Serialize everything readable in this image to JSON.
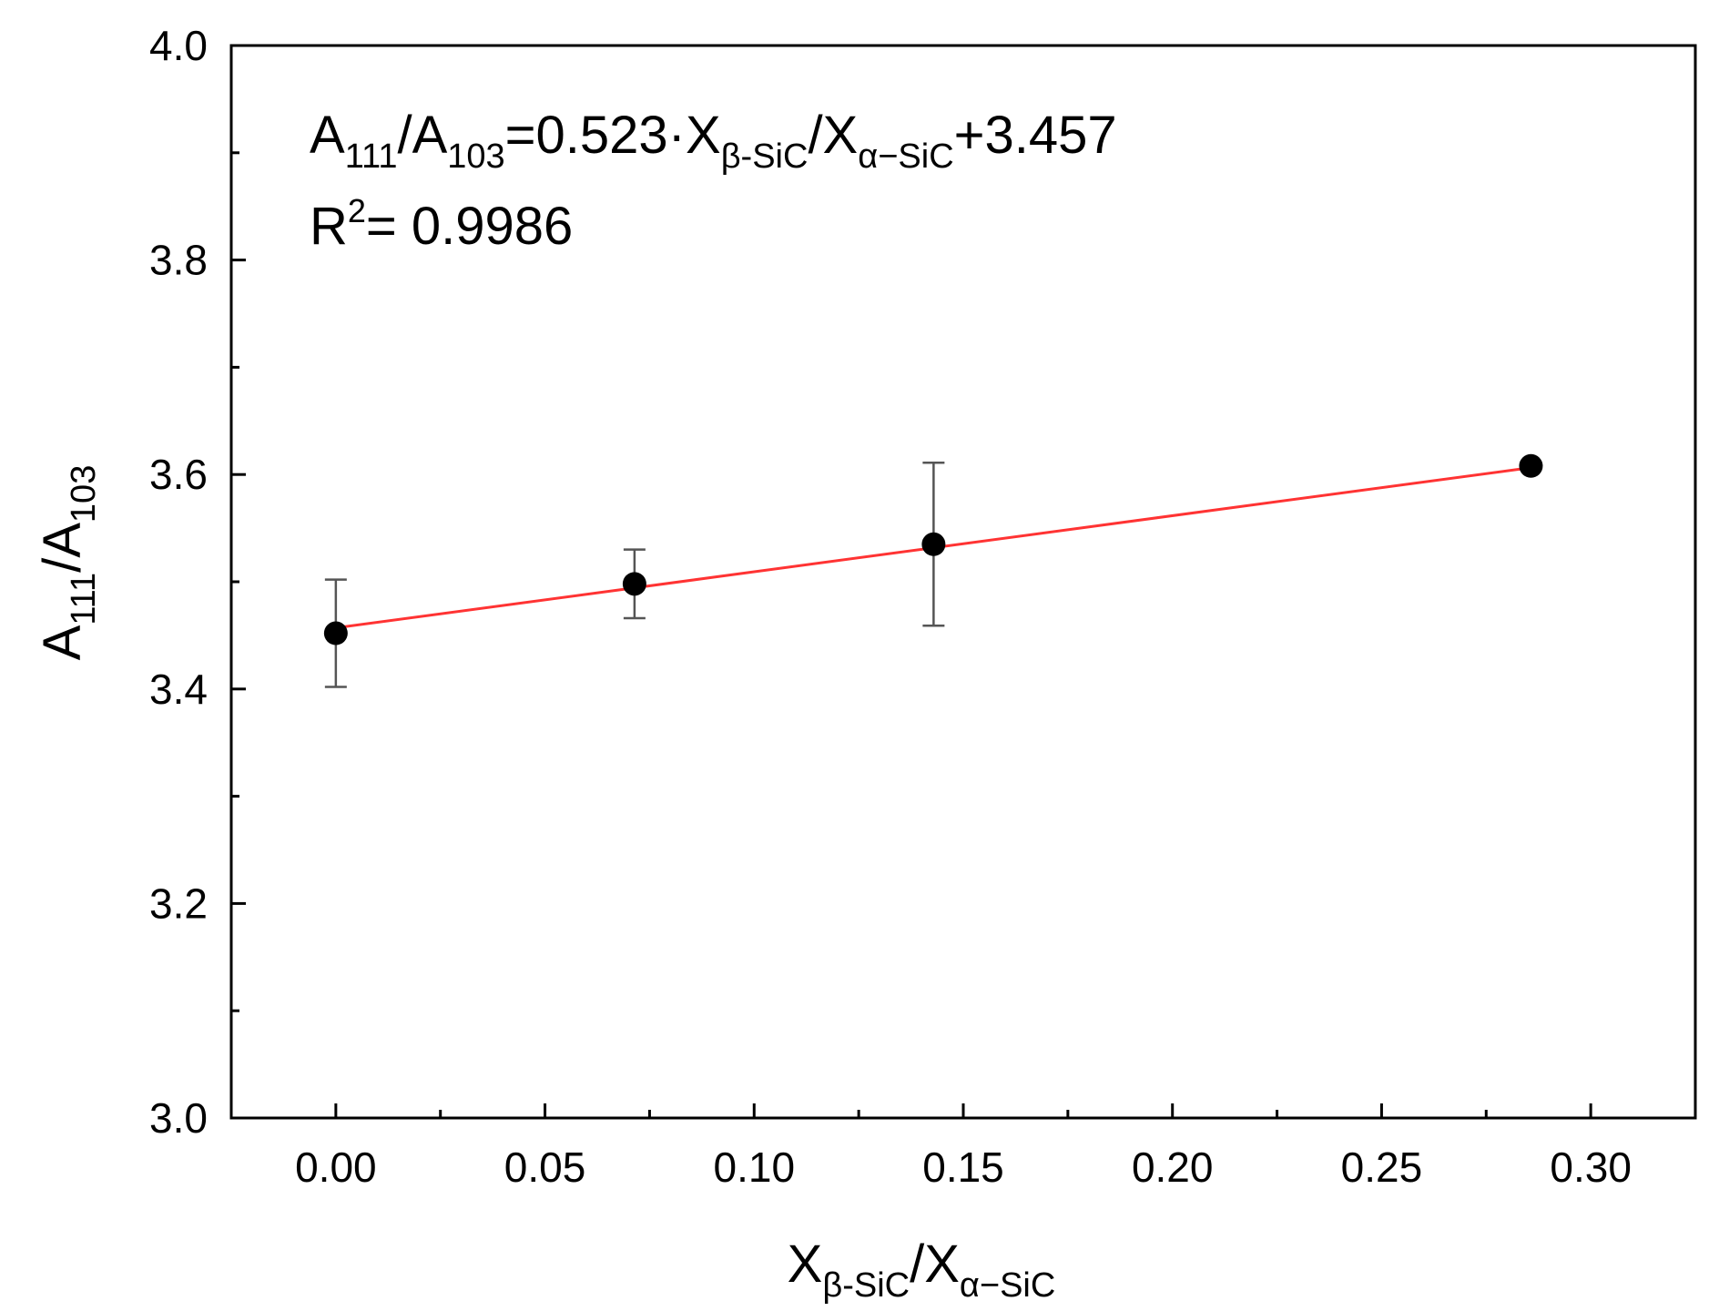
{
  "chart_data": {
    "type": "scatter",
    "title": "",
    "xlabel": {
      "base": "X",
      "sub": "β-SiC",
      "sep": "/",
      "base2": "X",
      "sub2": "α−SiC"
    },
    "ylabel": {
      "base": "A",
      "sub": "111",
      "sep": "/",
      "base2": "A",
      "sub2": "103"
    },
    "xlim": [
      -0.025,
      0.325
    ],
    "ylim": [
      3.0,
      4.0
    ],
    "x_ticks": [
      "0.00",
      "0.05",
      "0.10",
      "0.15",
      "0.20",
      "0.25",
      "0.30"
    ],
    "y_ticks": [
      "3.0",
      "3.2",
      "3.4",
      "3.6",
      "3.8",
      "4.0"
    ],
    "grid": false,
    "points": [
      {
        "x": 0.0,
        "y": 3.452,
        "err": 0.05
      },
      {
        "x": 0.0714,
        "y": 3.498,
        "err": 0.032
      },
      {
        "x": 0.1429,
        "y": 3.535,
        "err": 0.076
      },
      {
        "x": 0.2857,
        "y": 3.608,
        "err": null
      }
    ],
    "fit": {
      "slope": 0.523,
      "intercept": 3.457,
      "x_start": 0.0,
      "x_end": 0.2857,
      "color": "#ff3333"
    },
    "point_color": "#000000",
    "errorbar_color": "#555555",
    "annotations": {
      "equation": {
        "parts": [
          {
            "t": "A",
            "s": "n"
          },
          {
            "t": "111",
            "s": "sub"
          },
          {
            "t": "/A",
            "s": "n"
          },
          {
            "t": "103",
            "s": "sub"
          },
          {
            "t": "=0.523·X",
            "s": "n"
          },
          {
            "t": "β-SiC",
            "s": "sub"
          },
          {
            "t": "/X",
            "s": "n"
          },
          {
            "t": "α−SiC",
            "s": "sub"
          },
          {
            "t": "+3.457",
            "s": "n"
          }
        ]
      },
      "r2": {
        "parts": [
          {
            "t": "R",
            "s": "n"
          },
          {
            "t": "2",
            "s": "sup"
          },
          {
            "t": "= 0.9986",
            "s": "n"
          }
        ]
      }
    }
  }
}
